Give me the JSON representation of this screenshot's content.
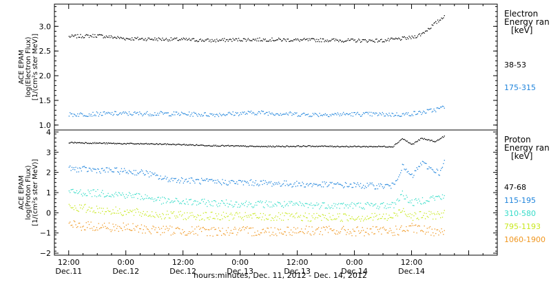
{
  "chart_data": [
    {
      "type": "scatter",
      "ylabel": [
        "ACE EPAM",
        "log(Electron Flux)",
        "[1/(cm²s ster MeV)]"
      ],
      "ylim": [
        0.9,
        3.45
      ],
      "yticks": [
        1.0,
        1.5,
        2.0,
        2.5,
        3.0
      ],
      "ytick_labels": [
        "1.0",
        "1.5",
        "2.0",
        "2.5",
        "3.0"
      ],
      "legend_title": [
        "Electron",
        "Energy ran",
        "[keV]"
      ],
      "legend_placement": "right",
      "series": [
        {
          "name": "38-53",
          "color": "#000000",
          "x": [
            0,
            6,
            12,
            18,
            24,
            30,
            36,
            42,
            48,
            54,
            60,
            66,
            72,
            74,
            76,
            78,
            79
          ],
          "y": [
            2.8,
            2.82,
            2.76,
            2.75,
            2.74,
            2.72,
            2.74,
            2.74,
            2.73,
            2.73,
            2.72,
            2.72,
            2.78,
            2.85,
            3.0,
            3.15,
            3.25
          ]
        },
        {
          "name": "175-315",
          "color": "#1f84dc",
          "x": [
            0,
            10,
            20,
            30,
            40,
            50,
            60,
            70,
            74,
            77,
            79
          ],
          "y": [
            1.22,
            1.24,
            1.24,
            1.22,
            1.26,
            1.22,
            1.23,
            1.22,
            1.26,
            1.32,
            1.38
          ]
        }
      ]
    },
    {
      "type": "scatter",
      "ylabel": [
        "ACE EPAM",
        "log(Proton Flux)",
        "[1/(cm²s ster MeV)]"
      ],
      "ylim": [
        -2.1,
        4.1
      ],
      "yticks": [
        -2,
        -1,
        0,
        1,
        2,
        3,
        4
      ],
      "ytick_labels": [
        "−2",
        "−1",
        "0",
        "1",
        "2",
        "3",
        "4"
      ],
      "legend_title": [
        "Proton",
        "Energy ran",
        "[keV]"
      ],
      "legend_placement": "right",
      "series": [
        {
          "name": "47-68",
          "color": "#000000",
          "x": [
            0,
            10,
            20,
            30,
            40,
            50,
            60,
            68,
            70,
            72,
            74,
            77,
            79
          ],
          "y": [
            3.5,
            3.45,
            3.42,
            3.35,
            3.3,
            3.32,
            3.3,
            3.3,
            3.7,
            3.4,
            3.7,
            3.55,
            3.85
          ]
        },
        {
          "name": "115-195",
          "color": "#1f84dc",
          "x": [
            0,
            10,
            16,
            20,
            30,
            40,
            50,
            60,
            64,
            68,
            70,
            72,
            74,
            76,
            78,
            79
          ],
          "y": [
            2.2,
            2.1,
            2.0,
            1.7,
            1.55,
            1.5,
            1.42,
            1.38,
            1.35,
            1.35,
            2.3,
            1.8,
            2.5,
            2.2,
            2.0,
            2.7
          ]
        },
        {
          "name": "310-580",
          "color": "#35dcc8",
          "x": [
            0,
            10,
            16,
            20,
            30,
            40,
            50,
            60,
            68,
            70,
            72,
            76,
            79
          ],
          "y": [
            1.05,
            0.95,
            0.8,
            0.6,
            0.5,
            0.45,
            0.4,
            0.38,
            0.38,
            0.95,
            0.5,
            0.75,
            0.8
          ]
        },
        {
          "name": "795-1193",
          "color": "#c8e81e",
          "x": [
            0,
            10,
            20,
            30,
            40,
            50,
            60,
            68,
            70,
            72,
            76,
            79
          ],
          "y": [
            0.3,
            0.1,
            -0.1,
            -0.15,
            -0.18,
            -0.2,
            -0.2,
            -0.2,
            0.2,
            -0.15,
            -0.1,
            -0.05
          ]
        },
        {
          "name": "1060-1900",
          "color": "#f0961e",
          "x": [
            0,
            10,
            20,
            30,
            40,
            50,
            60,
            68,
            72,
            76,
            79
          ],
          "y": [
            -0.6,
            -0.7,
            -0.85,
            -0.9,
            -0.9,
            -0.85,
            -0.9,
            -0.9,
            -0.75,
            -0.9,
            -0.8
          ]
        }
      ]
    }
  ],
  "x_axis": {
    "title": "hours:minutes, Dec. 11, 2012 - Dec. 14, 2012",
    "xlim": [
      -3,
      90
    ],
    "ticks": [
      {
        "x": 0,
        "time": "12:00",
        "date": "Dec.11"
      },
      {
        "x": 12,
        "time": "0:00",
        "date": "Dec.12"
      },
      {
        "x": 24,
        "time": "12:00",
        "date": "Dec.12"
      },
      {
        "x": 36,
        "time": "0:00",
        "date": "Dec.13"
      },
      {
        "x": 48,
        "time": "12:00",
        "date": "Dec.13"
      },
      {
        "x": 60,
        "time": "0:00",
        "date": "Dec.14"
      },
      {
        "x": 72,
        "time": "12:00",
        "date": "Dec.14"
      }
    ]
  }
}
